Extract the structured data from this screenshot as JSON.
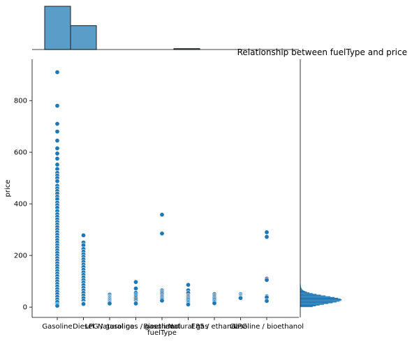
{
  "chart_data": {
    "type": "scatter",
    "title": "Relationship between fuelType and price",
    "xlabel": "fuelType",
    "ylabel": "price",
    "ylim": [
      -40,
      960
    ],
    "yticks": [
      0,
      200,
      400,
      600,
      800
    ],
    "categories": [
      "Gasoline",
      "Diesel",
      "LPG / gasoline",
      "Natural gas / gasoline",
      "Bioethanol",
      "Natural gas",
      "E85 / ethanol",
      "LPG",
      "Gasoline / bioethanol"
    ],
    "points": {
      "Gasoline": [
        910,
        780,
        710,
        680,
        645,
        615,
        595,
        575,
        552,
        535,
        520,
        510,
        500,
        488,
        470,
        460,
        450,
        440,
        428,
        418,
        405,
        395,
        385,
        372,
        360,
        350,
        340,
        330,
        320,
        310,
        300,
        290,
        280,
        270,
        260,
        250,
        240,
        230,
        220,
        210,
        200,
        190,
        180,
        170,
        160,
        150,
        140,
        130,
        120,
        110,
        100,
        90,
        80,
        70,
        60,
        50,
        40,
        30,
        20,
        10,
        5
      ],
      "Diesel": [
        278,
        250,
        240,
        225,
        215,
        205,
        195,
        185,
        175,
        165,
        155,
        145,
        135,
        125,
        115,
        105,
        95,
        85,
        75,
        65,
        55,
        45,
        35,
        25,
        15,
        12
      ],
      "LPG / gasoline": [
        48,
        42,
        38,
        34,
        30,
        26,
        22,
        18,
        14
      ],
      "Natural gas / gasoline": [
        97,
        72,
        55,
        48,
        42,
        36,
        30,
        24,
        18,
        14
      ],
      "Bioethanol": [
        358,
        285,
        65,
        60,
        55,
        50,
        45,
        40,
        35,
        30,
        25
      ],
      "Natural gas": [
        88,
        86,
        65,
        55,
        45,
        40,
        35,
        30,
        25,
        20,
        15,
        10
      ],
      "E85 / ethanol": [
        50,
        45,
        40,
        35,
        30,
        25,
        20,
        15
      ],
      "LPG": [
        50,
        46,
        42,
        38,
        35
      ],
      "Gasoline / bioethanol": [
        290,
        272,
        110,
        105,
        42,
        38,
        24
      ]
    },
    "top_histogram": {
      "counts": [
        1900,
        1050,
        0,
        0,
        0,
        40,
        0,
        0,
        0,
        0
      ]
    },
    "right_histogram": {
      "bins_range": [
        0,
        120
      ],
      "shape": "right-skewed"
    },
    "colors": {
      "points": "#1f77b4",
      "hist_fill": "#5b9dc9",
      "hist_edge": "#1b1b1b"
    },
    "grid": false
  }
}
